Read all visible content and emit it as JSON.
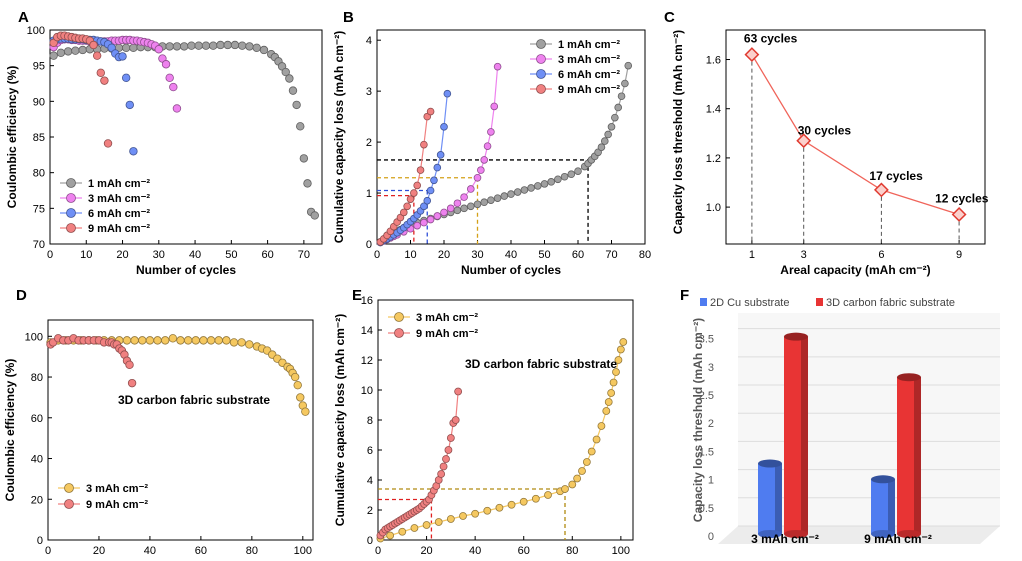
{
  "figure": {
    "description_caption": ""
  },
  "chart_data": [
    {
      "panel": "A",
      "type": "scatter",
      "xlabel": "Number of cycles",
      "ylabel": "Coulombic efficiency (%)",
      "xlim": [
        0,
        75
      ],
      "ylim": [
        70,
        100
      ],
      "xticks": [
        "0",
        "10",
        "20",
        "30",
        "40",
        "50",
        "60",
        "70"
      ],
      "yticks": [
        "70",
        "75",
        "80",
        "85",
        "90",
        "95",
        "100"
      ],
      "legend_position": "bottom-left",
      "series": [
        {
          "name": "1 mAh cm⁻²",
          "color": "#a0a0a0",
          "x": [
            1,
            3,
            5,
            7,
            9,
            11,
            13,
            15,
            17,
            19,
            21,
            23,
            25,
            27,
            29,
            31,
            33,
            35,
            37,
            39,
            41,
            43,
            45,
            47,
            49,
            51,
            53,
            55,
            57,
            59,
            61,
            62,
            63,
            64,
            65,
            66,
            67,
            68,
            69,
            70,
            71,
            72,
            73
          ],
          "y": [
            96.4,
            96.8,
            97.0,
            97.1,
            97.2,
            97.3,
            97.3,
            97.4,
            97.4,
            97.5,
            97.5,
            97.5,
            97.6,
            97.6,
            97.6,
            97.7,
            97.7,
            97.7,
            97.7,
            97.8,
            97.8,
            97.8,
            97.8,
            97.9,
            97.9,
            97.9,
            97.8,
            97.7,
            97.5,
            97.2,
            96.6,
            96.2,
            95.6,
            94.9,
            94.1,
            93.2,
            91.5,
            89.5,
            86.5,
            82.0,
            78.5,
            74.5,
            74.0
          ]
        },
        {
          "name": "3 mAh cm⁻²",
          "color": "#ee82ee",
          "x": [
            1,
            2,
            3,
            4,
            5,
            6,
            7,
            8,
            9,
            10,
            11,
            12,
            13,
            14,
            15,
            16,
            17,
            18,
            19,
            20,
            21,
            22,
            23,
            24,
            25,
            26,
            27,
            28,
            29,
            30,
            31,
            32,
            33,
            34,
            35
          ],
          "y": [
            97.6,
            98.2,
            98.6,
            98.7,
            98.7,
            98.6,
            98.6,
            98.5,
            98.5,
            98.5,
            98.4,
            98.4,
            98.4,
            98.4,
            98.4,
            98.4,
            98.5,
            98.5,
            98.5,
            98.6,
            98.6,
            98.6,
            98.5,
            98.5,
            98.4,
            98.3,
            98.2,
            98.0,
            97.8,
            97.3,
            96.0,
            95.2,
            93.3,
            92.0,
            89.0
          ]
        },
        {
          "name": "6 mAh cm⁻²",
          "color": "#6f8ff5",
          "x": [
            1,
            2,
            3,
            4,
            5,
            6,
            7,
            8,
            9,
            10,
            11,
            12,
            13,
            14,
            15,
            16,
            17,
            18,
            19,
            20,
            21,
            22,
            23
          ],
          "y": [
            98.5,
            98.7,
            98.8,
            98.8,
            98.8,
            98.7,
            98.7,
            98.7,
            98.7,
            98.6,
            98.6,
            98.6,
            98.5,
            98.4,
            98.3,
            98.0,
            97.5,
            96.7,
            96.2,
            96.3,
            93.3,
            89.5,
            83.0
          ]
        },
        {
          "name": "9 mAh cm⁻²",
          "color": "#f08080",
          "x": [
            1,
            2,
            3,
            4,
            5,
            6,
            7,
            8,
            9,
            10,
            11,
            12,
            13,
            14,
            15,
            16
          ],
          "y": [
            98.2,
            99.0,
            99.2,
            99.2,
            99.1,
            99.0,
            98.9,
            98.8,
            98.8,
            98.7,
            98.5,
            97.9,
            96.4,
            94.0,
            92.9,
            84.1
          ]
        }
      ]
    },
    {
      "panel": "B",
      "type": "line",
      "xlabel": "Number of cycles",
      "ylabel": "Cumulative capacity loss (mAh cm⁻²)",
      "xlim": [
        0,
        80
      ],
      "ylim": [
        0,
        4.2
      ],
      "xticks": [
        "0",
        "10",
        "20",
        "30",
        "40",
        "50",
        "60",
        "70",
        "80"
      ],
      "yticks": [
        "0",
        "1",
        "2",
        "3",
        "4"
      ],
      "legend_position": "top-right",
      "series": [
        {
          "name": "1 mAh cm⁻²",
          "color": "#a0a0a0",
          "x": [
            1,
            2,
            3,
            4,
            5,
            6,
            7,
            8,
            9,
            10,
            12,
            14,
            16,
            18,
            20,
            22,
            24,
            26,
            28,
            30,
            32,
            34,
            36,
            38,
            40,
            42,
            44,
            46,
            48,
            50,
            52,
            54,
            56,
            58,
            60,
            62,
            63,
            64,
            65,
            66,
            67,
            68,
            69,
            70,
            71,
            72,
            73,
            74,
            75
          ],
          "y": [
            0.04,
            0.08,
            0.13,
            0.17,
            0.21,
            0.25,
            0.28,
            0.31,
            0.34,
            0.37,
            0.42,
            0.46,
            0.5,
            0.54,
            0.58,
            0.62,
            0.66,
            0.7,
            0.74,
            0.78,
            0.82,
            0.86,
            0.9,
            0.94,
            0.98,
            1.02,
            1.06,
            1.1,
            1.14,
            1.18,
            1.22,
            1.27,
            1.32,
            1.37,
            1.43,
            1.52,
            1.58,
            1.65,
            1.72,
            1.8,
            1.9,
            2.02,
            2.15,
            2.3,
            2.48,
            2.68,
            2.9,
            3.15,
            3.5
          ]
        },
        {
          "name": "3 mAh cm⁻²",
          "color": "#ee82ee",
          "x": [
            1,
            2,
            3,
            4,
            5,
            6,
            8,
            10,
            12,
            14,
            16,
            18,
            20,
            22,
            24,
            26,
            28,
            30,
            31,
            32,
            33,
            34,
            35,
            36
          ],
          "y": [
            0.03,
            0.06,
            0.09,
            0.12,
            0.15,
            0.18,
            0.24,
            0.3,
            0.36,
            0.42,
            0.48,
            0.55,
            0.62,
            0.7,
            0.8,
            0.92,
            1.08,
            1.3,
            1.45,
            1.65,
            1.92,
            2.2,
            2.7,
            3.48
          ]
        },
        {
          "name": "6 mAh cm⁻²",
          "color": "#6f8ff5",
          "x": [
            1,
            2,
            3,
            4,
            5,
            6,
            7,
            8,
            9,
            10,
            11,
            12,
            13,
            14,
            15,
            16,
            17,
            18,
            19,
            20,
            21
          ],
          "y": [
            0.03,
            0.07,
            0.1,
            0.14,
            0.18,
            0.22,
            0.27,
            0.32,
            0.38,
            0.44,
            0.5,
            0.57,
            0.65,
            0.74,
            0.85,
            1.05,
            1.25,
            1.5,
            1.75,
            2.3,
            2.95
          ]
        },
        {
          "name": "9 mAh cm⁻²",
          "color": "#f08080",
          "x": [
            1,
            2,
            3,
            4,
            5,
            6,
            7,
            8,
            9,
            10,
            11,
            12,
            13,
            14,
            15,
            16
          ],
          "y": [
            0.04,
            0.1,
            0.17,
            0.25,
            0.34,
            0.43,
            0.52,
            0.62,
            0.74,
            0.88,
            1.0,
            1.15,
            1.45,
            1.95,
            2.5,
            2.6
          ]
        }
      ],
      "guide_lines": [
        {
          "color": "#000000",
          "y": 1.65,
          "x": 63
        },
        {
          "color": "#d4a017",
          "y": 1.3,
          "x": 30
        },
        {
          "color": "#2f4fd8",
          "y": 1.05,
          "x": 15
        },
        {
          "color": "#e02020",
          "y": 0.95,
          "x": 11
        }
      ]
    },
    {
      "panel": "C",
      "type": "line",
      "xlabel": "Areal capacity (mAh cm⁻²)",
      "ylabel": "Capacity loss threshold (mAh cm⁻²)",
      "xlim": [
        0,
        10
      ],
      "ylim": [
        0.85,
        1.72
      ],
      "xticks": [
        1,
        3,
        6,
        9
      ],
      "yticks": [
        "1.0",
        "1.2",
        "1.4",
        "1.6"
      ],
      "x": [
        1,
        3,
        6,
        9
      ],
      "y": [
        1.62,
        1.27,
        1.07,
        0.97
      ],
      "point_labels": [
        "63 cycles",
        "30 cycles",
        "17 cycles",
        "12 cycles"
      ],
      "color": "#f0645a"
    },
    {
      "panel": "D",
      "type": "scatter",
      "xlabel": "Number of cycles",
      "ylabel": "Coulombic efficiency (%)",
      "annotation": "3D carbon fabric substrate",
      "xlim": [
        0,
        104
      ],
      "ylim": [
        0,
        108
      ],
      "xticks": [
        "0",
        "20",
        "40",
        "60",
        "80",
        "100"
      ],
      "yticks": [
        "0",
        "20",
        "40",
        "60",
        "80",
        "100"
      ],
      "legend_position": "bottom-left",
      "series": [
        {
          "name": "3 mAh cm⁻²",
          "color": "#f5c860",
          "x": [
            1,
            4,
            7,
            10,
            13,
            16,
            19,
            22,
            25,
            28,
            31,
            34,
            37,
            40,
            43,
            46,
            49,
            52,
            55,
            58,
            61,
            64,
            67,
            70,
            73,
            76,
            79,
            82,
            84,
            86,
            88,
            90,
            92,
            94,
            95,
            96,
            97,
            98,
            99,
            100,
            101
          ],
          "y": [
            97,
            98,
            98,
            98,
            98,
            98,
            98,
            98,
            98,
            98,
            98,
            98,
            98,
            98,
            98,
            98,
            99,
            98,
            98,
            98,
            98,
            98,
            98,
            98,
            97,
            97,
            96,
            95,
            94,
            93,
            91,
            89,
            87,
            85,
            84,
            82,
            80,
            76,
            70,
            66,
            63
          ]
        },
        {
          "name": "9 mAh cm⁻²",
          "color": "#f08080",
          "x": [
            1,
            2,
            4,
            6,
            8,
            10,
            12,
            14,
            16,
            18,
            20,
            22,
            24,
            25,
            26,
            27,
            28,
            29,
            30,
            31,
            32,
            33
          ],
          "y": [
            96,
            97,
            99,
            98,
            98,
            99,
            98,
            98,
            98,
            98,
            98,
            97,
            97,
            97,
            96,
            96,
            94,
            93,
            91,
            88,
            86,
            77
          ]
        }
      ]
    },
    {
      "panel": "E",
      "type": "line",
      "xlabel": "Number of cycles",
      "ylabel": "Cumulative capacity loss (mAh cm⁻²)",
      "annotation": "3D carbon fabric substrate",
      "xlim": [
        0,
        105
      ],
      "ylim": [
        0,
        16
      ],
      "xticks": [
        "0",
        "20",
        "40",
        "60",
        "80",
        "100"
      ],
      "yticks": [
        "0",
        "2",
        "4",
        "6",
        "8",
        "10",
        "12",
        "14",
        "16"
      ],
      "legend_position": "top-left",
      "series": [
        {
          "name": "3 mAh cm⁻²",
          "color": "#f5c860",
          "x": [
            1,
            5,
            10,
            15,
            20,
            25,
            30,
            35,
            40,
            45,
            50,
            55,
            60,
            65,
            70,
            75,
            77,
            80,
            82,
            84,
            86,
            88,
            90,
            92,
            94,
            95,
            96,
            97,
            98,
            99,
            100,
            101
          ],
          "y": [
            0.1,
            0.3,
            0.55,
            0.8,
            1.0,
            1.2,
            1.4,
            1.6,
            1.75,
            1.95,
            2.15,
            2.35,
            2.55,
            2.75,
            3.0,
            3.25,
            3.4,
            3.7,
            4.1,
            4.6,
            5.2,
            5.9,
            6.7,
            7.6,
            8.6,
            9.2,
            9.8,
            10.5,
            11.2,
            12.0,
            12.7,
            13.2
          ]
        },
        {
          "name": "9 mAh cm⁻²",
          "color": "#f08080",
          "x": [
            1,
            2,
            3,
            4,
            5,
            6,
            7,
            8,
            9,
            10,
            11,
            12,
            13,
            14,
            15,
            16,
            17,
            18,
            19,
            20,
            21,
            22,
            23,
            24,
            25,
            26,
            27,
            28,
            29,
            30,
            31,
            32,
            33
          ],
          "y": [
            0.3,
            0.5,
            0.7,
            0.8,
            0.9,
            1.0,
            1.1,
            1.2,
            1.3,
            1.4,
            1.5,
            1.6,
            1.7,
            1.8,
            1.9,
            2.0,
            2.1,
            2.25,
            2.4,
            2.55,
            2.7,
            3.0,
            3.3,
            3.6,
            4.0,
            4.4,
            4.9,
            5.4,
            6.0,
            6.8,
            7.8,
            8.0,
            9.9
          ]
        }
      ],
      "guide_lines": [
        {
          "color": "#b08a10",
          "y": 3.4,
          "x": 77
        },
        {
          "color": "#e02020",
          "y": 2.7,
          "x": 22
        }
      ]
    },
    {
      "panel": "F",
      "type": "bar",
      "ylabel": "Capacity loss threshold (mAh cm⁻²)",
      "ylim": [
        0,
        3.6
      ],
      "yticks": [
        "0",
        "0.5",
        "1",
        "1.5",
        "2",
        "2.5",
        "3",
        "3.5"
      ],
      "categories": [
        "3 mAh cm⁻²",
        "9 mAh cm⁻²"
      ],
      "series": [
        {
          "name": "2D Cu substrate",
          "color": "#4f7cf0",
          "values": [
            1.25,
            0.97
          ]
        },
        {
          "name": "3D carbon fabric substrate",
          "color": "#e83434",
          "values": [
            3.5,
            2.78
          ]
        }
      ]
    }
  ]
}
